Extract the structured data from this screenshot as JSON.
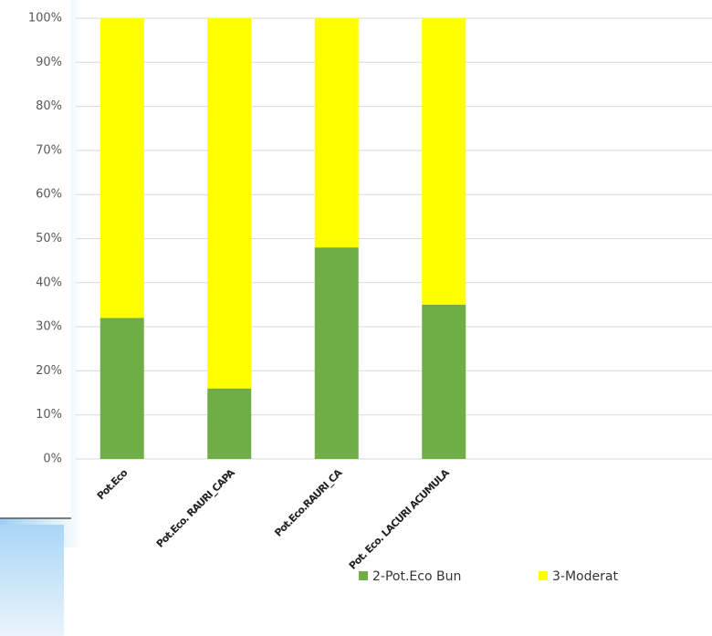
{
  "chart_data": {
    "type": "stacked-bar",
    "categories": [
      "Pot.Eco",
      "Pot.Eco. RAURI_CAPA",
      "Pot.Eco.RAURI_CA",
      "Pot. Eco. LACURI ACUMULA"
    ],
    "series": [
      {
        "name": "2-Pot.Eco Bun",
        "color": "#70ad47",
        "values": [
          32,
          16,
          48,
          35
        ]
      },
      {
        "name": "3-Moderat",
        "color": "#ffff00",
        "values": [
          68,
          84,
          52,
          65
        ]
      }
    ],
    "ylim": [
      0,
      100
    ],
    "yticks": [
      {
        "value": 0,
        "label": "0%"
      },
      {
        "value": 10,
        "label": "10%"
      },
      {
        "value": 20,
        "label": "20%"
      },
      {
        "value": 30,
        "label": "30%"
      },
      {
        "value": 40,
        "label": "40%"
      },
      {
        "value": 50,
        "label": "50%"
      },
      {
        "value": 60,
        "label": "60%"
      },
      {
        "value": 70,
        "label": "70%"
      },
      {
        "value": 80,
        "label": "80%"
      },
      {
        "value": 90,
        "label": "90%"
      },
      {
        "value": 100,
        "label": "100%"
      }
    ],
    "grid": true
  }
}
